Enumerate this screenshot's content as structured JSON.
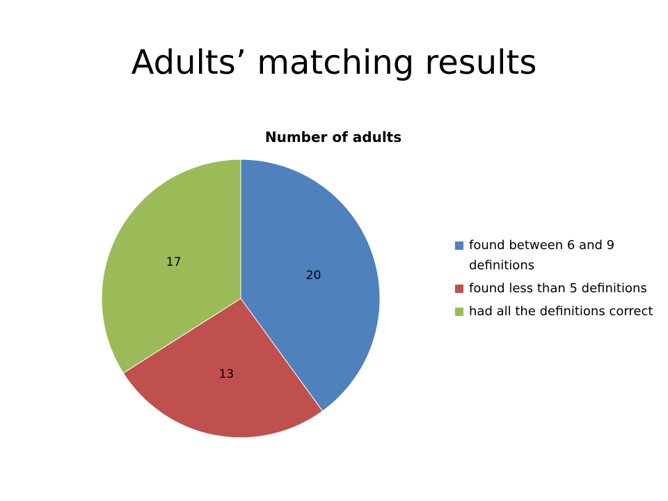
{
  "slide": {
    "title": "Adults’ matching results"
  },
  "chart_data": {
    "type": "pie",
    "title": "Number of adults",
    "legend_position": "right",
    "slices": [
      {
        "label": "found between 6 and 9 definitions",
        "value": 20,
        "value_label": "20",
        "color": "#4F81BD"
      },
      {
        "label": "found less than 5 definitions",
        "value": 13,
        "value_label": "13",
        "color": "#C0504D"
      },
      {
        "label": "had all the definitions correct",
        "value": 17,
        "value_label": "17",
        "color": "#9BBB59"
      }
    ]
  }
}
